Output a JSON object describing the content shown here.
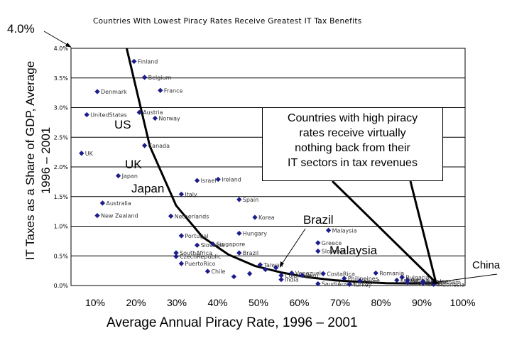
{
  "chart_data": {
    "type": "scatter",
    "title": "Countries With Lowest Piracy Rates Receive Greatest IT Tax Benefits",
    "xlabel": "Average Annual Piracy Rate, 1996 – 2001",
    "ylabel": "IT Taxes as a Share of GDP, Average 1996 – 2001",
    "x_ticks": [
      "10%",
      "20%",
      "30%",
      "40%",
      "50%",
      "60%",
      "70%",
      "80%",
      "90%",
      "100%"
    ],
    "y_ticks": [
      "0.0%",
      "0.5%",
      "1.0%",
      "1.5%",
      "2.0%",
      "2.5%",
      "3.0%",
      "3.5%",
      "4.0%"
    ],
    "xlim": [
      25,
      100
    ],
    "ylim": [
      0,
      4.0
    ],
    "grid": "horizontal",
    "marker_color": "#1c1c8c",
    "series": [
      {
        "points": [
          {
            "x": 37,
            "y": 3.78,
            "label": "Finland"
          },
          {
            "x": 39,
            "y": 3.51,
            "label": "Belgium"
          },
          {
            "x": 42,
            "y": 3.29,
            "label": "France"
          },
          {
            "x": 30,
            "y": 3.27,
            "label": "Denmark"
          },
          {
            "x": 28,
            "y": 2.88,
            "label": "UnitedStates"
          },
          {
            "x": 38,
            "y": 2.92,
            "label": "Austria"
          },
          {
            "x": 41,
            "y": 2.82,
            "label": "Norway"
          },
          {
            "x": 39,
            "y": 2.36,
            "label": "Canada"
          },
          {
            "x": 27,
            "y": 2.23,
            "label": "UK"
          },
          {
            "x": 34,
            "y": 1.85,
            "label": "Japan"
          },
          {
            "x": 53,
            "y": 1.79,
            "label": "Ireland"
          },
          {
            "x": 49,
            "y": 1.77,
            "label": "Israel"
          },
          {
            "x": 46,
            "y": 1.54,
            "label": "Italy"
          },
          {
            "x": 57,
            "y": 1.45,
            "label": "Spain"
          },
          {
            "x": 31,
            "y": 1.39,
            "label": "Australia"
          },
          {
            "x": 30,
            "y": 1.18,
            "label": "New Zealand"
          },
          {
            "x": 44,
            "y": 1.17,
            "label": "Netherlands"
          },
          {
            "x": 60,
            "y": 1.15,
            "label": "Korea"
          },
          {
            "x": 57,
            "y": 0.88,
            "label": "Hungary"
          },
          {
            "x": 74,
            "y": 0.93,
            "label": "Malaysia"
          },
          {
            "x": 46,
            "y": 0.84,
            "label": "Portugal"
          },
          {
            "x": 52,
            "y": 0.7,
            "label": "Singapore"
          },
          {
            "x": 72,
            "y": 0.72,
            "label": "Greece"
          },
          {
            "x": 49,
            "y": 0.68,
            "label": "Slovakia"
          },
          {
            "x": 57,
            "y": 0.55,
            "label": "Brazil"
          },
          {
            "x": 72,
            "y": 0.58,
            "label": "Slovenia"
          },
          {
            "x": 45,
            "y": 0.55,
            "label": "SouthAfrica"
          },
          {
            "x": 45,
            "y": 0.49,
            "label": "CzechRepublic"
          },
          {
            "x": 46,
            "y": 0.37,
            "label": "PuertoRico"
          },
          {
            "x": 61,
            "y": 0.35,
            "label": "Taiwan"
          },
          {
            "x": 51,
            "y": 0.24,
            "label": "Chile"
          },
          {
            "x": 67,
            "y": 0.21,
            "label": "Venezuela"
          },
          {
            "x": 73,
            "y": 0.2,
            "label": "CostaRica"
          },
          {
            "x": 65,
            "y": 0.17,
            "label": "Colombia"
          },
          {
            "x": 69,
            "y": 0.17,
            "label": "Peru"
          },
          {
            "x": 77,
            "y": 0.12,
            "label": "Philippines"
          },
          {
            "x": 65,
            "y": 0.1,
            "label": "India"
          },
          {
            "x": 80,
            "y": 0.08,
            "label": "Egypt"
          },
          {
            "x": 83,
            "y": 0.21,
            "label": "Romania"
          },
          {
            "x": 88,
            "y": 0.14,
            "label": "Bulgaria"
          },
          {
            "x": 87,
            "y": 0.09,
            "label": "Kuwait"
          },
          {
            "x": 89,
            "y": 0.09,
            "label": "Russia"
          },
          {
            "x": 92,
            "y": 0.07,
            "label": "Ukraine"
          },
          {
            "x": 94,
            "y": 0.06,
            "label": "Vietnam"
          },
          {
            "x": 89,
            "y": 0.05,
            "label": "Thailand"
          },
          {
            "x": 92,
            "y": 0.04,
            "label": "China"
          },
          {
            "x": 94,
            "y": 0.02,
            "label": "Indonesia"
          },
          {
            "x": 72,
            "y": 0.03,
            "label": "SaudiArabia"
          },
          {
            "x": 78,
            "y": 0.02,
            "label": "Turkey"
          },
          {
            "x": 59,
            "y": 0.2,
            "label": ""
          },
          {
            "x": 62,
            "y": 0.27,
            "label": ""
          },
          {
            "x": 56,
            "y": 0.15,
            "label": ""
          },
          {
            "x": 64,
            "y": 0.3,
            "label": ""
          }
        ]
      }
    ],
    "trend_curve": [
      {
        "x": 35.6,
        "y": 4.0
      },
      {
        "x": 40,
        "y": 2.35
      },
      {
        "x": 45,
        "y": 1.35
      },
      {
        "x": 50,
        "y": 0.82
      },
      {
        "x": 55,
        "y": 0.52
      },
      {
        "x": 60,
        "y": 0.33
      },
      {
        "x": 65,
        "y": 0.22
      },
      {
        "x": 70,
        "y": 0.14
      },
      {
        "x": 75,
        "y": 0.09
      },
      {
        "x": 80,
        "y": 0.06
      },
      {
        "x": 85,
        "y": 0.04
      },
      {
        "x": 90,
        "y": 0.035
      },
      {
        "x": 95,
        "y": 0.04
      }
    ]
  },
  "annotations": {
    "y_top": "4.0%",
    "us": "US",
    "uk": "UK",
    "japan": "Japan",
    "brazil": "Brazil",
    "malaysia": "Malaysia",
    "china": "China",
    "callout_lines": [
      "Countries with high piracy",
      "rates receive virtually",
      "nothing back from their",
      "IT sectors in tax revenues"
    ]
  }
}
